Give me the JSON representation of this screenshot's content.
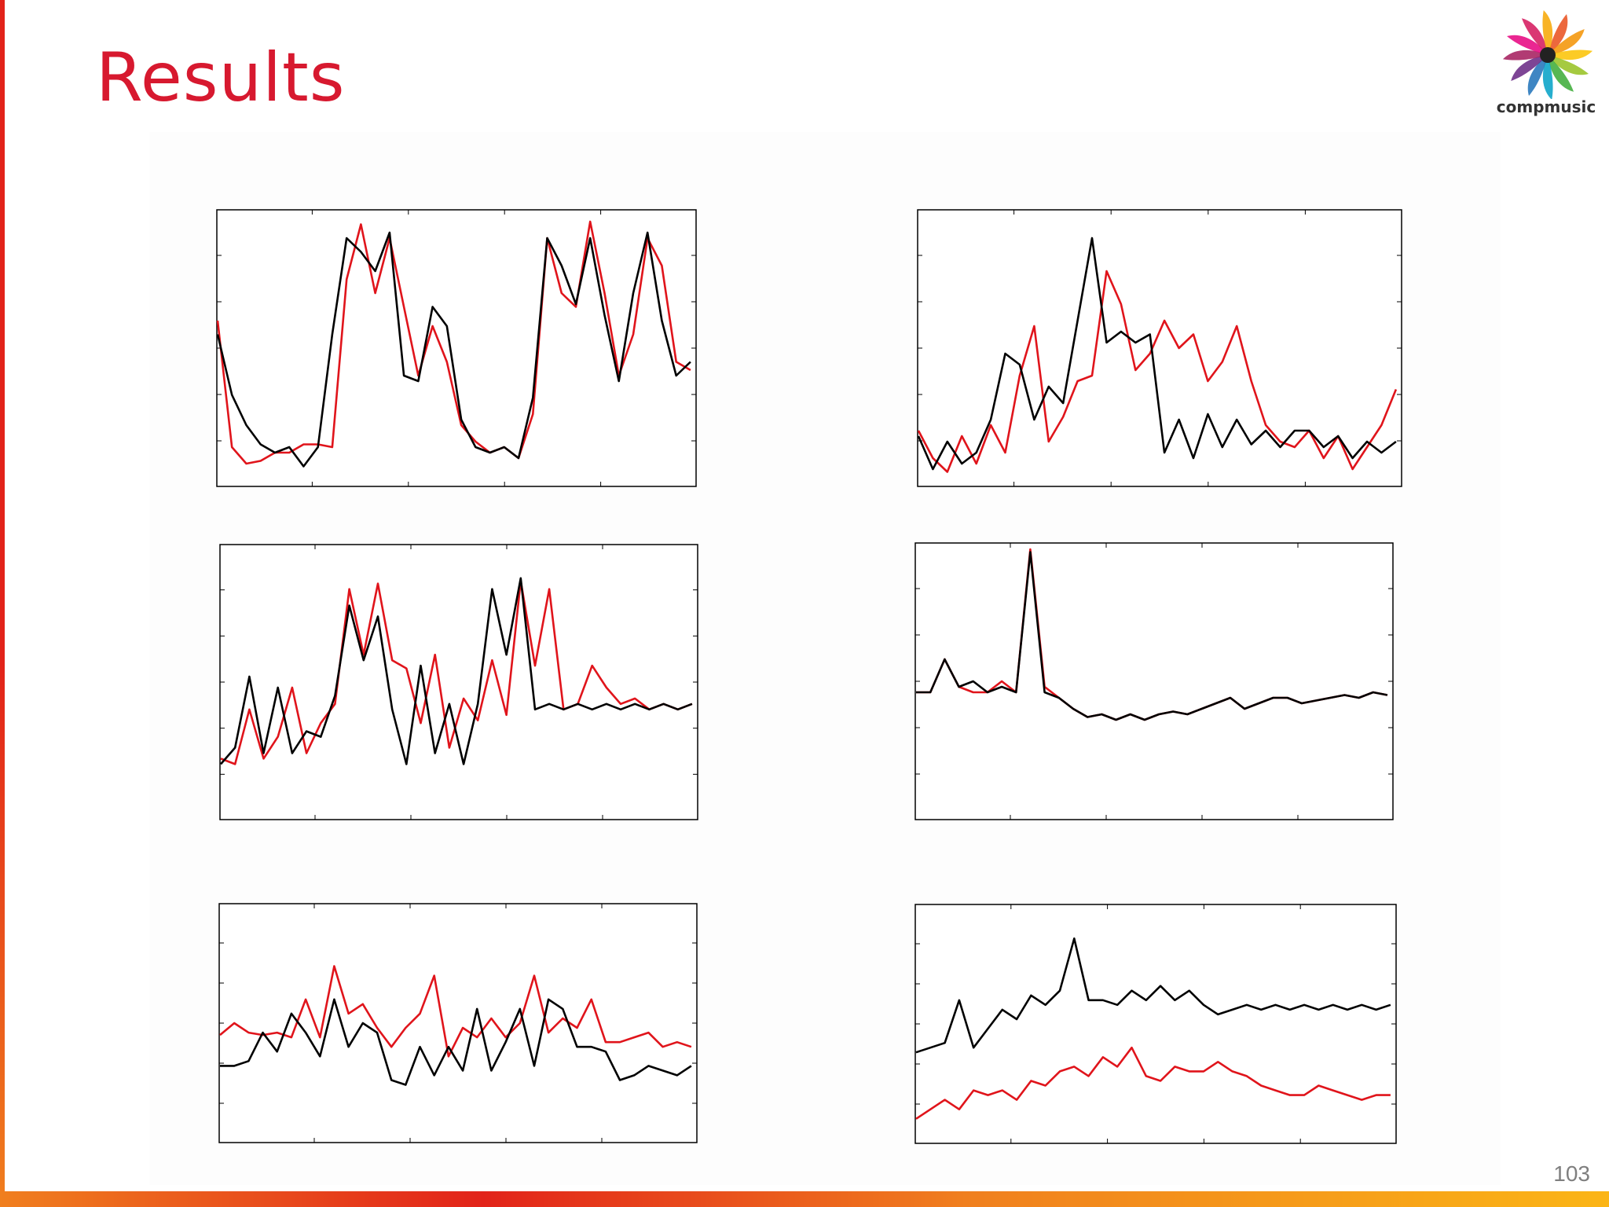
{
  "slide": {
    "title": "Results",
    "page_number": "103",
    "title_color": "#d7192f",
    "accent_colors": [
      "#e2231a",
      "#f07f1e",
      "#fbb516"
    ]
  },
  "logo": {
    "text": "compmusic",
    "icon": "pinwheel-logo-icon"
  },
  "chart_data": [
    {
      "type": "line",
      "grid": false,
      "legend": "none",
      "xlim": [
        0,
        100
      ],
      "ylim": [
        0,
        100
      ],
      "series": [
        {
          "color": "#e0141b",
          "x": [
            0,
            3,
            6,
            9,
            12,
            15,
            18,
            21,
            24,
            27,
            30,
            33,
            36,
            39,
            42,
            45,
            48,
            51,
            54,
            57,
            60,
            63,
            66,
            69,
            72,
            75,
            78,
            81,
            84,
            87,
            90,
            93,
            96,
            99
          ],
          "values": [
            60,
            14,
            8,
            9,
            12,
            12,
            15,
            15,
            14,
            75,
            95,
            70,
            90,
            65,
            40,
            58,
            45,
            22,
            16,
            12,
            14,
            10,
            26,
            90,
            70,
            65,
            96,
            70,
            40,
            55,
            90,
            80,
            45,
            42
          ]
        },
        {
          "color": "#000000",
          "x": [
            0,
            3,
            6,
            9,
            12,
            15,
            18,
            21,
            24,
            27,
            30,
            33,
            36,
            39,
            42,
            45,
            48,
            51,
            54,
            57,
            60,
            63,
            66,
            69,
            72,
            75,
            78,
            81,
            84,
            87,
            90,
            93,
            96,
            99
          ],
          "values": [
            55,
            33,
            22,
            15,
            12,
            14,
            7,
            14,
            55,
            90,
            85,
            78,
            92,
            40,
            38,
            65,
            58,
            24,
            14,
            12,
            14,
            10,
            32,
            90,
            80,
            66,
            90,
            62,
            38,
            70,
            92,
            60,
            40,
            45
          ]
        }
      ]
    },
    {
      "type": "line",
      "grid": false,
      "legend": "none",
      "xlim": [
        0,
        100
      ],
      "ylim": [
        0,
        100
      ],
      "series": [
        {
          "color": "#e0141b",
          "x": [
            0,
            3,
            6,
            9,
            12,
            15,
            18,
            21,
            24,
            27,
            30,
            33,
            36,
            39,
            42,
            45,
            48,
            51,
            54,
            57,
            60,
            63,
            66,
            69,
            72,
            75,
            78,
            81,
            84,
            87,
            90,
            93,
            96,
            99
          ],
          "values": [
            20,
            10,
            5,
            18,
            8,
            22,
            12,
            40,
            58,
            16,
            25,
            38,
            40,
            78,
            66,
            42,
            48,
            60,
            50,
            55,
            38,
            45,
            58,
            38,
            22,
            16,
            14,
            20,
            10,
            18,
            6,
            14,
            22,
            35
          ]
        },
        {
          "color": "#000000",
          "x": [
            0,
            3,
            6,
            9,
            12,
            15,
            18,
            21,
            24,
            27,
            30,
            33,
            36,
            39,
            42,
            45,
            48,
            51,
            54,
            57,
            60,
            63,
            66,
            69,
            72,
            75,
            78,
            81,
            84,
            87,
            90,
            93,
            96,
            99
          ],
          "values": [
            18,
            6,
            16,
            8,
            12,
            24,
            48,
            44,
            24,
            36,
            30,
            60,
            90,
            52,
            56,
            52,
            55,
            12,
            24,
            10,
            26,
            14,
            24,
            15,
            20,
            14,
            20,
            20,
            14,
            18,
            10,
            16,
            12,
            16
          ]
        }
      ]
    },
    {
      "type": "line",
      "grid": false,
      "legend": "none",
      "xlim": [
        0,
        100
      ],
      "ylim": [
        0,
        100
      ],
      "series": [
        {
          "color": "#e0141b",
          "x": [
            0,
            3,
            6,
            9,
            12,
            15,
            18,
            21,
            24,
            27,
            30,
            33,
            36,
            39,
            42,
            45,
            48,
            51,
            54,
            57,
            60,
            63,
            66,
            69,
            72,
            75,
            78,
            81,
            84,
            87,
            90,
            93,
            96,
            99
          ],
          "values": [
            22,
            20,
            40,
            22,
            30,
            48,
            24,
            35,
            42,
            84,
            60,
            86,
            58,
            55,
            35,
            60,
            26,
            44,
            36,
            58,
            38,
            87,
            56,
            84,
            40,
            42,
            56,
            48,
            42,
            44,
            40,
            42,
            40,
            42
          ]
        },
        {
          "color": "#000000",
          "x": [
            0,
            3,
            6,
            9,
            12,
            15,
            18,
            21,
            24,
            27,
            30,
            33,
            36,
            39,
            42,
            45,
            48,
            51,
            54,
            57,
            60,
            63,
            66,
            69,
            72,
            75,
            78,
            81,
            84,
            87,
            90,
            93,
            96,
            99
          ],
          "values": [
            20,
            26,
            52,
            24,
            48,
            24,
            32,
            30,
            45,
            78,
            58,
            74,
            40,
            20,
            56,
            24,
            42,
            20,
            42,
            84,
            60,
            88,
            40,
            42,
            40,
            42,
            40,
            42,
            40,
            42,
            40,
            42,
            40,
            42
          ]
        }
      ]
    },
    {
      "type": "line",
      "grid": false,
      "legend": "none",
      "xlim": [
        0,
        100
      ],
      "ylim": [
        0,
        100
      ],
      "series": [
        {
          "color": "#e0141b",
          "x": [
            0,
            3,
            6,
            9,
            12,
            15,
            18,
            21,
            24,
            27,
            30,
            33,
            36,
            39,
            42,
            45,
            48,
            51,
            54,
            57,
            60,
            63,
            66,
            69,
            72,
            75,
            78,
            81,
            84,
            87,
            90,
            93,
            96,
            99
          ],
          "values": [
            46,
            46,
            58,
            48,
            46,
            46,
            50,
            46,
            98,
            48,
            44,
            40,
            37,
            38,
            36,
            38,
            36,
            38,
            39,
            38,
            40,
            42,
            44,
            40,
            42,
            44,
            44,
            42,
            43,
            44,
            45,
            44,
            46,
            45
          ]
        },
        {
          "color": "#000000",
          "x": [
            0,
            3,
            6,
            9,
            12,
            15,
            18,
            21,
            24,
            27,
            30,
            33,
            36,
            39,
            42,
            45,
            48,
            51,
            54,
            57,
            60,
            63,
            66,
            69,
            72,
            75,
            78,
            81,
            84,
            87,
            90,
            93,
            96,
            99
          ],
          "values": [
            46,
            46,
            58,
            48,
            50,
            46,
            48,
            46,
            97,
            46,
            44,
            40,
            37,
            38,
            36,
            38,
            36,
            38,
            39,
            38,
            40,
            42,
            44,
            40,
            42,
            44,
            44,
            42,
            43,
            44,
            45,
            44,
            46,
            45
          ]
        }
      ]
    },
    {
      "type": "line",
      "grid": false,
      "legend": "none",
      "xlim": [
        0,
        100
      ],
      "ylim": [
        0,
        100
      ],
      "series": [
        {
          "color": "#e0141b",
          "x": [
            0,
            3,
            6,
            9,
            12,
            15,
            18,
            21,
            24,
            27,
            30,
            33,
            36,
            39,
            42,
            45,
            48,
            51,
            54,
            57,
            60,
            63,
            66,
            69,
            72,
            75,
            78,
            81,
            84,
            87,
            90,
            93,
            96,
            99
          ],
          "values": [
            45,
            50,
            46,
            45,
            46,
            44,
            60,
            44,
            74,
            54,
            58,
            48,
            40,
            48,
            54,
            70,
            36,
            48,
            44,
            52,
            44,
            50,
            70,
            46,
            52,
            48,
            60,
            42,
            42,
            44,
            46,
            40,
            42,
            40
          ]
        },
        {
          "color": "#000000",
          "x": [
            0,
            3,
            6,
            9,
            12,
            15,
            18,
            21,
            24,
            27,
            30,
            33,
            36,
            39,
            42,
            45,
            48,
            51,
            54,
            57,
            60,
            63,
            66,
            69,
            72,
            75,
            78,
            81,
            84,
            87,
            90,
            93,
            96,
            99
          ],
          "values": [
            32,
            32,
            34,
            46,
            38,
            54,
            46,
            36,
            60,
            40,
            50,
            46,
            26,
            24,
            40,
            28,
            40,
            30,
            56,
            30,
            42,
            56,
            32,
            60,
            56,
            40,
            40,
            38,
            26,
            28,
            32,
            30,
            28,
            32
          ]
        }
      ]
    },
    {
      "type": "line",
      "grid": false,
      "legend": "none",
      "xlim": [
        0,
        100
      ],
      "ylim": [
        0,
        100
      ],
      "series": [
        {
          "color": "#e0141b",
          "x": [
            0,
            3,
            6,
            9,
            12,
            15,
            18,
            21,
            24,
            27,
            30,
            33,
            36,
            39,
            42,
            45,
            48,
            51,
            54,
            57,
            60,
            63,
            66,
            69,
            72,
            75,
            78,
            81,
            84,
            87,
            90,
            93,
            96,
            99
          ],
          "values": [
            10,
            14,
            18,
            14,
            22,
            20,
            22,
            18,
            26,
            24,
            30,
            32,
            28,
            36,
            32,
            40,
            28,
            26,
            32,
            30,
            30,
            34,
            30,
            28,
            24,
            22,
            20,
            20,
            24,
            22,
            20,
            18,
            20,
            20
          ]
        },
        {
          "color": "#000000",
          "x": [
            0,
            3,
            6,
            9,
            12,
            15,
            18,
            21,
            24,
            27,
            30,
            33,
            36,
            39,
            42,
            45,
            48,
            51,
            54,
            57,
            60,
            63,
            66,
            69,
            72,
            75,
            78,
            81,
            84,
            87,
            90,
            93,
            96,
            99
          ],
          "values": [
            38,
            40,
            42,
            60,
            40,
            48,
            56,
            52,
            62,
            58,
            64,
            86,
            60,
            60,
            58,
            64,
            60,
            66,
            60,
            64,
            58,
            54,
            56,
            58,
            56,
            58,
            56,
            58,
            56,
            58,
            56,
            58,
            56,
            58
          ]
        }
      ]
    }
  ]
}
